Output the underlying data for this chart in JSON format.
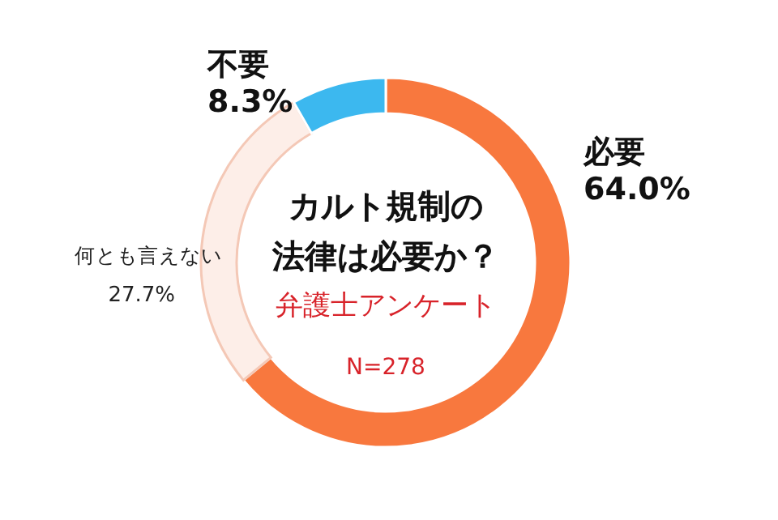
{
  "chart_data": {
    "type": "donut",
    "title": "カルト規制の法律は必要か？",
    "subtitle": "弁護士アンケート",
    "annotations": [
      "N=278"
    ],
    "categories": [
      "必要",
      "何とも言えない",
      "不要"
    ],
    "values": [
      64.0,
      27.7,
      8.3
    ],
    "value_labels": [
      "64.0%",
      "27.7%",
      "8.3%"
    ],
    "colors": [
      "#f8783e",
      "#fdeee8",
      "#3cb8ef"
    ]
  }
}
